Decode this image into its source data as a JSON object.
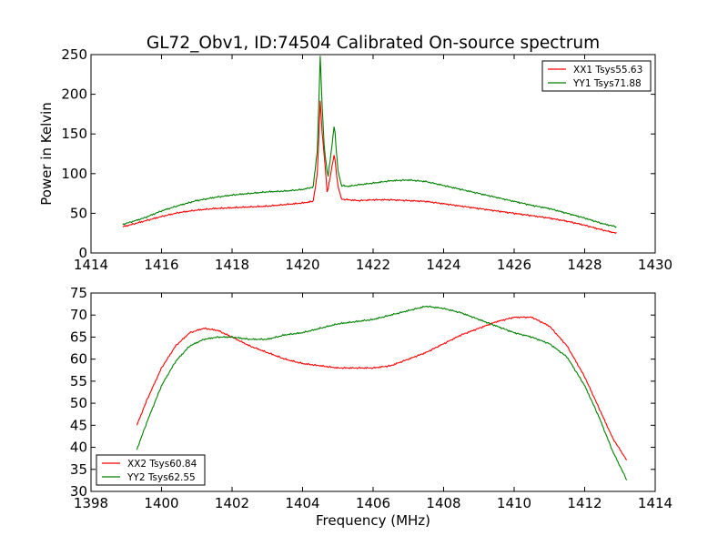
{
  "title": "GL72_Obv1, ID:74504 Calibrated On-source spectrum",
  "chart_data": [
    {
      "type": "line",
      "title": "GL72_Obv1, ID:74504 Calibrated On-source spectrum",
      "xlabel": "",
      "ylabel": "Power in Kelvin",
      "xlim": [
        1414,
        1430
      ],
      "ylim": [
        0,
        250
      ],
      "xticks": [
        1414,
        1416,
        1418,
        1420,
        1422,
        1424,
        1426,
        1428,
        1430
      ],
      "yticks": [
        0,
        50,
        100,
        150,
        200,
        250
      ],
      "grid": false,
      "legend": "top-right",
      "series": [
        {
          "name": "XX1 Tsys55.63",
          "color": "#ff0000",
          "x": [
            1414.9,
            1415.5,
            1416.0,
            1416.5,
            1417.0,
            1417.5,
            1418.0,
            1418.5,
            1419.0,
            1419.5,
            1420.0,
            1420.3,
            1420.42,
            1420.5,
            1420.55,
            1420.62,
            1420.7,
            1420.8,
            1420.9,
            1421.0,
            1421.1,
            1421.3,
            1421.6,
            1422.0,
            1422.5,
            1423.0,
            1423.5,
            1424.0,
            1424.5,
            1425.0,
            1425.5,
            1426.0,
            1426.5,
            1427.0,
            1427.5,
            1428.0,
            1428.5,
            1428.9
          ],
          "y": [
            33,
            40,
            46,
            51,
            54,
            56,
            57,
            58,
            59,
            61,
            63,
            65,
            100,
            192,
            155,
            120,
            75,
            100,
            125,
            85,
            68,
            67,
            66,
            67,
            67,
            66,
            65,
            62,
            59,
            56,
            53,
            50,
            47,
            44,
            40,
            35,
            29,
            25
          ]
        },
        {
          "name": "YY1 Tsys71.88",
          "color": "#008000",
          "x": [
            1414.9,
            1415.5,
            1416.0,
            1416.5,
            1417.0,
            1417.5,
            1418.0,
            1418.5,
            1419.0,
            1419.5,
            1420.0,
            1420.3,
            1420.42,
            1420.5,
            1420.55,
            1420.62,
            1420.72,
            1420.82,
            1420.9,
            1421.0,
            1421.1,
            1421.3,
            1421.6,
            1422.0,
            1422.5,
            1423.0,
            1423.5,
            1424.0,
            1424.5,
            1425.0,
            1425.5,
            1426.0,
            1426.5,
            1427.0,
            1427.5,
            1428.0,
            1428.5,
            1428.9
          ],
          "y": [
            36,
            44,
            53,
            60,
            66,
            70,
            73,
            75,
            77,
            78,
            80,
            83,
            130,
            248,
            190,
            130,
            95,
            130,
            163,
            105,
            85,
            84,
            86,
            88,
            91,
            92,
            90,
            85,
            80,
            75,
            70,
            65,
            60,
            56,
            50,
            44,
            37,
            33
          ]
        }
      ]
    },
    {
      "type": "line",
      "title": "",
      "xlabel": "Frequency (MHz)",
      "ylabel": "",
      "xlim": [
        1398,
        1414
      ],
      "ylim": [
        30,
        75
      ],
      "xticks": [
        1398,
        1400,
        1402,
        1404,
        1406,
        1408,
        1410,
        1412,
        1414
      ],
      "yticks": [
        30,
        35,
        40,
        45,
        50,
        55,
        60,
        65,
        70,
        75
      ],
      "grid": false,
      "legend": "bottom-left",
      "series": [
        {
          "name": "XX2 Tsys60.84",
          "color": "#ff0000",
          "x": [
            1399.3,
            1399.6,
            1400.0,
            1400.4,
            1400.8,
            1401.2,
            1401.6,
            1402.0,
            1402.5,
            1403.0,
            1403.5,
            1404.0,
            1404.5,
            1405.0,
            1405.5,
            1406.0,
            1406.5,
            1407.0,
            1407.5,
            1408.0,
            1408.5,
            1409.0,
            1409.5,
            1410.0,
            1410.5,
            1411.0,
            1411.5,
            1412.0,
            1412.4,
            1412.8,
            1413.2
          ],
          "y": [
            45,
            51,
            58,
            63,
            66,
            67,
            66.5,
            65,
            63,
            61.5,
            60,
            59,
            58.5,
            58,
            58,
            58,
            58.5,
            60,
            61.5,
            63.5,
            65.5,
            67,
            68.5,
            69.5,
            69.5,
            67.5,
            63,
            56,
            49,
            42,
            37
          ]
        },
        {
          "name": "YY2 Tsys62.55",
          "color": "#008000",
          "x": [
            1399.3,
            1399.6,
            1400.0,
            1400.4,
            1400.8,
            1401.2,
            1401.6,
            1402.0,
            1402.5,
            1403.0,
            1403.5,
            1404.0,
            1404.5,
            1405.0,
            1405.5,
            1406.0,
            1406.5,
            1407.0,
            1407.5,
            1408.0,
            1408.5,
            1409.0,
            1409.5,
            1410.0,
            1410.5,
            1411.0,
            1411.5,
            1412.0,
            1412.4,
            1412.8,
            1413.2
          ],
          "y": [
            39.5,
            46,
            54,
            59.5,
            63,
            64.5,
            65,
            65,
            64.5,
            64.5,
            65.5,
            66,
            67,
            68,
            68.5,
            69,
            70,
            71,
            72,
            71.5,
            70.5,
            69,
            67.5,
            66,
            65,
            63.5,
            60.5,
            54,
            47,
            39,
            32.5
          ]
        }
      ]
    }
  ]
}
